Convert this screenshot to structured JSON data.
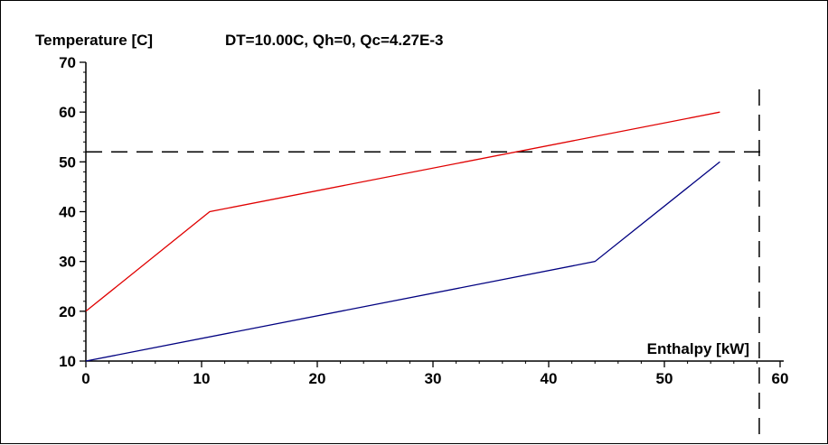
{
  "chart_data": {
    "type": "line",
    "title": "DT=10.00C, Qh=0, Qc=4.27E-3",
    "ylabel": "Temperature [C]",
    "xlabel": "Enthalpy [kW]",
    "xlim": [
      0,
      60
    ],
    "ylim": [
      10,
      70
    ],
    "xticks": [
      0,
      10,
      20,
      30,
      40,
      50,
      60
    ],
    "yticks": [
      10,
      20,
      30,
      40,
      50,
      60,
      70
    ],
    "grid": false,
    "series": [
      {
        "color": "#e00000",
        "points": [
          [
            0,
            20
          ],
          [
            10.7,
            40
          ],
          [
            54.8,
            60
          ]
        ]
      },
      {
        "color": "#000080",
        "points": [
          [
            0,
            10
          ],
          [
            44,
            30
          ],
          [
            54.8,
            50
          ]
        ]
      }
    ],
    "reference_lines": [
      {
        "orientation": "horizontal",
        "value": 52,
        "style": "dashed",
        "color": "#000000"
      },
      {
        "orientation": "vertical",
        "value": 58.2,
        "style": "dashed",
        "color": "#000000"
      }
    ]
  }
}
